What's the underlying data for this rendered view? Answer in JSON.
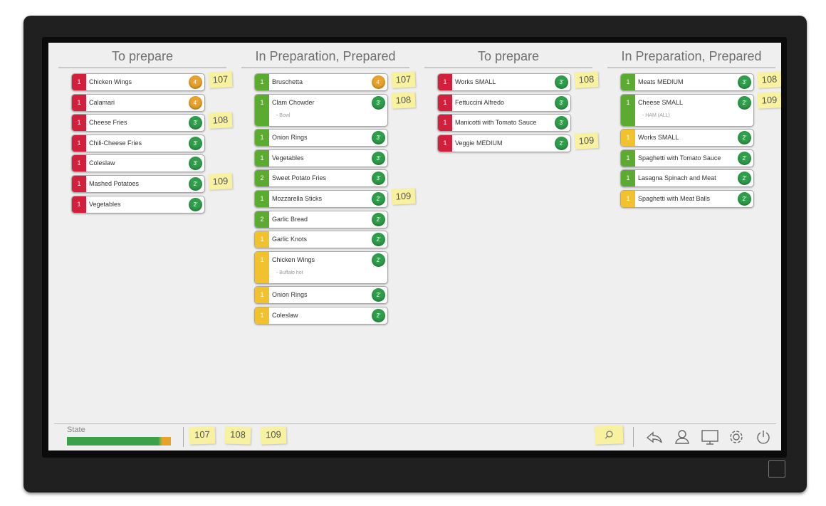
{
  "columns": [
    {
      "title": "To prepare",
      "items": [
        {
          "qty": 1,
          "name": "Chicken Wings",
          "qty_color": "#d21f3c",
          "time": "4'",
          "time_color": "#e8a22b",
          "order": "107"
        },
        {
          "qty": 1,
          "name": "Calamari",
          "qty_color": "#d21f3c",
          "time": "4'",
          "time_color": "#e8a22b"
        },
        {
          "qty": 1,
          "name": "Cheese Fries",
          "qty_color": "#d21f3c",
          "time": "3'",
          "time_color": "#2e9e4a",
          "order": "108"
        },
        {
          "qty": 1,
          "name": "Chili-Cheese Fries",
          "qty_color": "#d21f3c",
          "time": "3'",
          "time_color": "#2e9e4a"
        },
        {
          "qty": 1,
          "name": "Coleslaw",
          "qty_color": "#d21f3c",
          "time": "3'",
          "time_color": "#2e9e4a"
        },
        {
          "qty": 1,
          "name": "Mashed Potatoes",
          "qty_color": "#d21f3c",
          "time": "2'",
          "time_color": "#2e9e4a",
          "order": "109"
        },
        {
          "qty": 1,
          "name": "Vegetables",
          "qty_color": "#d21f3c",
          "time": "2'",
          "time_color": "#2e9e4a"
        }
      ]
    },
    {
      "title": "In Preparation, Prepared",
      "items": [
        {
          "qty": 1,
          "name": "Bruschetta",
          "qty_color": "#5aab2f",
          "time": "4'",
          "time_color": "#e8a22b",
          "order": "107"
        },
        {
          "qty": 1,
          "name": "Clam Chowder",
          "note": "- Bowl",
          "qty_color": "#5aab2f",
          "time": "3'",
          "time_color": "#2e9e4a",
          "order": "108"
        },
        {
          "qty": 1,
          "name": "Onion Rings",
          "qty_color": "#5aab2f",
          "time": "3'",
          "time_color": "#2e9e4a"
        },
        {
          "qty": 1,
          "name": "Vegetables",
          "qty_color": "#5aab2f",
          "time": "3'",
          "time_color": "#2e9e4a"
        },
        {
          "qty": 2,
          "name": "Sweet Potato Fries",
          "qty_color": "#5aab2f",
          "time": "3'",
          "time_color": "#2e9e4a"
        },
        {
          "qty": 1,
          "name": "Mozzarella Sticks",
          "qty_color": "#5aab2f",
          "time": "2'",
          "time_color": "#2e9e4a",
          "order": "109"
        },
        {
          "qty": 2,
          "name": "Garlic Bread",
          "qty_color": "#5aab2f",
          "time": "2'",
          "time_color": "#2e9e4a"
        },
        {
          "qty": 1,
          "name": "Garlic Knots",
          "qty_color": "#f2c12e",
          "time": "2'",
          "time_color": "#2e9e4a"
        },
        {
          "qty": 1,
          "name": "Chicken Wings",
          "note": "- Buffalo hot",
          "qty_color": "#f2c12e",
          "time": "2'",
          "time_color": "#2e9e4a"
        },
        {
          "qty": 1,
          "name": "Onion Rings",
          "qty_color": "#f2c12e",
          "time": "2'",
          "time_color": "#2e9e4a"
        },
        {
          "qty": 1,
          "name": "Coleslaw",
          "qty_color": "#f2c12e",
          "time": "2'",
          "time_color": "#2e9e4a"
        }
      ]
    },
    {
      "title": "To prepare",
      "items": [
        {
          "qty": 1,
          "name": "Works SMALL",
          "qty_color": "#d21f3c",
          "time": "3'",
          "time_color": "#2e9e4a",
          "order": "108"
        },
        {
          "qty": 1,
          "name": "Fettuccini Alfredo",
          "qty_color": "#d21f3c",
          "time": "3'",
          "time_color": "#2e9e4a"
        },
        {
          "qty": 1,
          "name": "Manicotti with Tomato Sauce",
          "qty_color": "#d21f3c",
          "time": "3'",
          "time_color": "#2e9e4a"
        },
        {
          "qty": 1,
          "name": "Veggie MEDIUM",
          "qty_color": "#d21f3c",
          "time": "2'",
          "time_color": "#2e9e4a",
          "order": "109"
        }
      ]
    },
    {
      "title": "In Preparation, Prepared",
      "items": [
        {
          "qty": 1,
          "name": "Meats MEDIUM",
          "qty_color": "#5aab2f",
          "time": "3'",
          "time_color": "#2e9e4a",
          "order": "108"
        },
        {
          "qty": 1,
          "name": "Cheese SMALL",
          "note": "- HAM (ALL)",
          "qty_color": "#5aab2f",
          "time": "2'",
          "time_color": "#2e9e4a",
          "order": "109"
        },
        {
          "qty": 1,
          "name": "Works SMALL",
          "qty_color": "#f2c12e",
          "time": "2'",
          "time_color": "#2e9e4a"
        },
        {
          "qty": 1,
          "name": "Spaghetti  with Tomato Sauce",
          "qty_color": "#5aab2f",
          "time": "2'",
          "time_color": "#2e9e4a"
        },
        {
          "qty": 1,
          "name": "Lasagna Spinach and Meat",
          "qty_color": "#5aab2f",
          "time": "2'",
          "time_color": "#2e9e4a"
        },
        {
          "qty": 1,
          "name": "Spaghetti with Meat Balls",
          "qty_color": "#f2c12e",
          "time": "2'",
          "time_color": "#2e9e4a"
        }
      ]
    }
  ],
  "footer": {
    "state_label": "State",
    "orders": [
      "107",
      "108",
      "109"
    ]
  }
}
